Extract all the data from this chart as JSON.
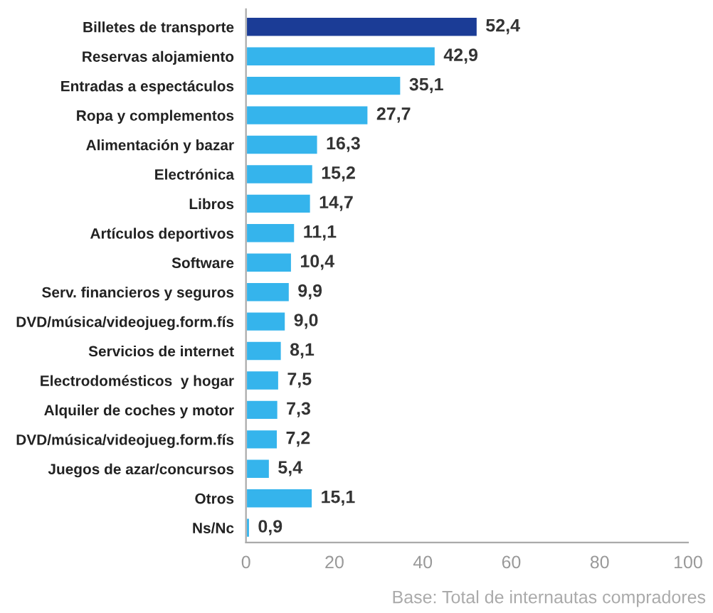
{
  "chart_data": {
    "type": "bar",
    "orientation": "horizontal",
    "categories": [
      "Billetes de transporte",
      "Reservas alojamiento",
      "Entradas a espectáculos",
      "Ropa y complementos",
      "Alimentación y bazar",
      "Electrónica",
      "Libros",
      "Artículos deportivos",
      "Software",
      "Serv. financieros y seguros",
      "DVD/música/videojueg.form.fís",
      "Servicios de internet",
      "Electrodomésticos  y hogar",
      "Alquiler de coches y motor",
      "DVD/música/videojueg.form.fís",
      "Juegos de azar/concursos",
      "Otros",
      "Ns/Nc"
    ],
    "values": [
      52.4,
      42.9,
      35.1,
      27.7,
      16.3,
      15.2,
      14.7,
      11.1,
      10.4,
      9.9,
      9.0,
      8.1,
      7.5,
      7.3,
      7.2,
      5.4,
      15.1,
      0.9
    ],
    "value_labels": [
      "52,4",
      "42,9",
      "35,1",
      "27,7",
      "16,3",
      "15,2",
      "14,7",
      "11,1",
      "10,4",
      "9,9",
      "9,0",
      "8,1",
      "7,5",
      "7,3",
      "7,2",
      "5,4",
      "15,1",
      "0,9"
    ],
    "colors": [
      "#1b3c96",
      "#35b4ec",
      "#35b4ec",
      "#35b4ec",
      "#35b4ec",
      "#35b4ec",
      "#35b4ec",
      "#35b4ec",
      "#35b4ec",
      "#35b4ec",
      "#35b4ec",
      "#35b4ec",
      "#35b4ec",
      "#35b4ec",
      "#35b4ec",
      "#35b4ec",
      "#35b4ec",
      "#35b4ec"
    ],
    "xlim": [
      0,
      100
    ],
    "xticks": [
      0,
      20,
      40,
      60,
      80,
      100
    ],
    "grid": false,
    "annotations": [
      "Base: Total de internautas compradores"
    ]
  }
}
